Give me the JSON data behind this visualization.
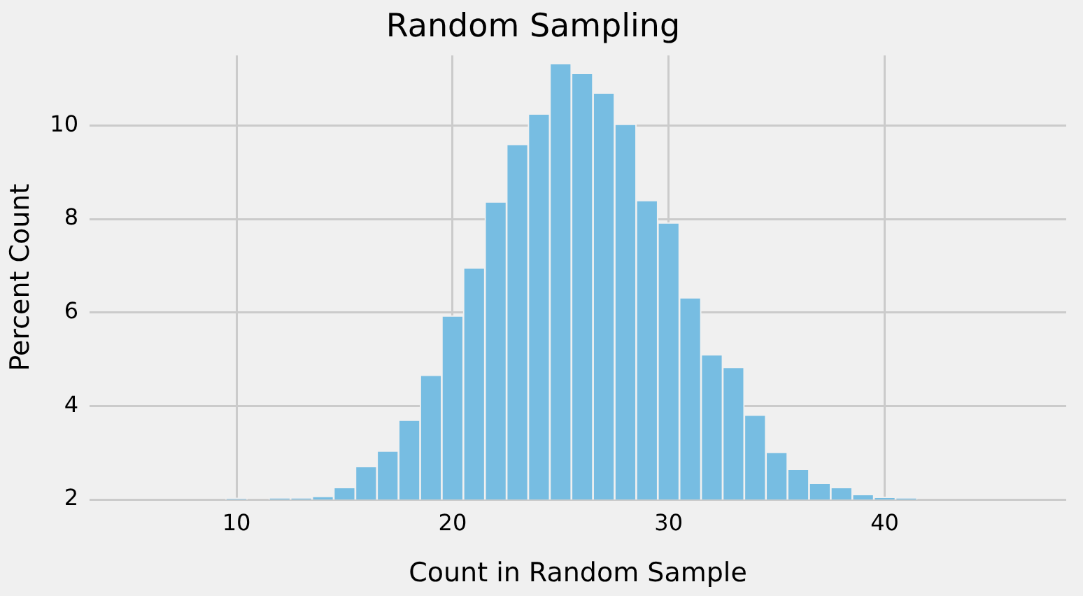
{
  "chart_data": {
    "type": "histogram",
    "title": "Random Sampling",
    "xlabel": "Count in Random Sample",
    "ylabel": "Percent Count",
    "bins": [
      9.5,
      10.5,
      11.5,
      12.5,
      13.5,
      14.5,
      15.5,
      16.5,
      17.5,
      18.5,
      19.5,
      20.5,
      21.5,
      22.5,
      23.5,
      24.5,
      25.5,
      26.5,
      27.5,
      28.5,
      29.5,
      30.5,
      31.5,
      32.5,
      33.5,
      34.5,
      35.5,
      36.5,
      37.5,
      38.5,
      39.5,
      40.5,
      41.5
    ],
    "values": [
      2.03,
      null,
      2.04,
      2.04,
      2.07,
      2.26,
      2.71,
      3.04,
      3.7,
      4.66,
      5.93,
      6.96,
      8.37,
      9.6,
      10.25,
      11.33,
      11.12,
      10.7,
      10.03,
      8.4,
      7.92,
      6.32,
      5.1,
      4.83,
      3.81,
      3.01,
      2.65,
      2.35,
      2.26,
      2.11,
      2.05,
      2.04
    ],
    "color": "#77bde2",
    "xlim": [
      3.2,
      48.4
    ],
    "ylim": [
      2,
      11.5
    ],
    "xticks": [
      10,
      20,
      30,
      40
    ],
    "yticks": [
      2,
      4,
      6,
      8,
      10
    ],
    "grid": true,
    "legend": false
  }
}
